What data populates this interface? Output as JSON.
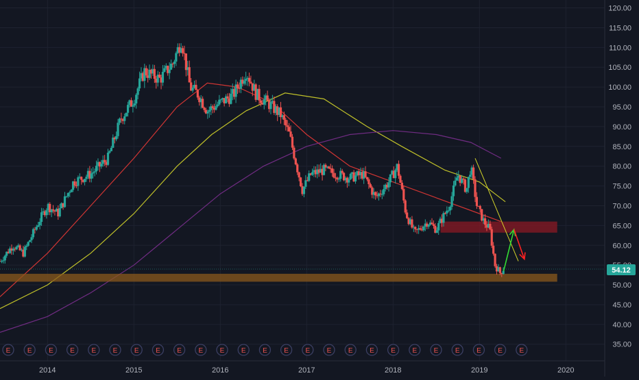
{
  "colors": {
    "background": "#131722",
    "grid": "#1e2230",
    "axis_text": "#b2b5be",
    "up": "#26a69a",
    "down": "#ef5350",
    "ma_fast": "#e53935",
    "ma_mid": "#d4d42a",
    "ma_slow": "#7b2f8e",
    "support_zone": "#8b5a1c",
    "resistance_zone": "#8b1a24",
    "price_tag": "#26a69a",
    "bull_arrow": "#33dd33",
    "bear_arrow": "#ff2222",
    "trendline": "#d4d42a"
  },
  "chart_data": {
    "type": "candlestick",
    "ylim": [
      30.8,
      122.0
    ],
    "y_ticks": [
      "120.00",
      "115.00",
      "110.00",
      "105.00",
      "100.00",
      "95.00",
      "90.00",
      "85.00",
      "80.00",
      "75.00",
      "70.00",
      "65.00",
      "60.00",
      "55.00",
      "50.00",
      "45.00",
      "40.00",
      "35.00"
    ],
    "x_ticks": [
      "2014",
      "2015",
      "2016",
      "2017",
      "2018",
      "2019",
      "2020"
    ],
    "current_price": "54.12",
    "earnings_marker_label": "E",
    "earnings_marker_count": 25,
    "price_path": [
      [
        "2013.45",
        56
      ],
      [
        "2013.6",
        60
      ],
      [
        "2013.72",
        58
      ],
      [
        "2013.9",
        66
      ],
      [
        "2014.0",
        70
      ],
      [
        "2014.12",
        68
      ],
      [
        "2014.3",
        76
      ],
      [
        "2014.5",
        78
      ],
      [
        "2014.7",
        82
      ],
      [
        "2014.85",
        92
      ],
      [
        "2015.0",
        97
      ],
      [
        "2015.12",
        104
      ],
      [
        "2015.3",
        102
      ],
      [
        "2015.45",
        106
      ],
      [
        "2015.55",
        112
      ],
      [
        "2015.65",
        100
      ],
      [
        "2015.75",
        98
      ],
      [
        "2015.85",
        94
      ],
      [
        "2016.0",
        96
      ],
      [
        "2016.15",
        98
      ],
      [
        "2016.3",
        104
      ],
      [
        "2016.42",
        98
      ],
      [
        "2016.55",
        96
      ],
      [
        "2016.7",
        93
      ],
      [
        "2016.8",
        88
      ],
      [
        "2016.95",
        74
      ],
      [
        "2017.05",
        78
      ],
      [
        "2017.2",
        79
      ],
      [
        "2017.35",
        78
      ],
      [
        "2017.5",
        77
      ],
      [
        "2017.65",
        78
      ],
      [
        "2017.8",
        72
      ],
      [
        "2017.95",
        76
      ],
      [
        "2018.05",
        80
      ],
      [
        "2018.15",
        68
      ],
      [
        "2018.25",
        63
      ],
      [
        "2018.4",
        66
      ],
      [
        "2018.5",
        64
      ],
      [
        "2018.65",
        70
      ],
      [
        "2018.75",
        78
      ],
      [
        "2018.85",
        74
      ],
      [
        "2018.9",
        80
      ],
      [
        "2018.97",
        70
      ],
      [
        "2019.05",
        66
      ],
      [
        "2019.12",
        64
      ],
      [
        "2019.18",
        55
      ],
      [
        "2019.24",
        53
      ],
      [
        "2019.28",
        54.12
      ]
    ],
    "moving_averages": [
      {
        "key": "ma_fast",
        "points": [
          [
            "2013.45",
            47
          ],
          [
            "2014.0",
            58
          ],
          [
            "2014.5",
            70
          ],
          [
            "2015.0",
            82
          ],
          [
            "2015.5",
            95
          ],
          [
            "2015.85",
            101
          ],
          [
            "2016.2",
            100
          ],
          [
            "2016.6",
            96
          ],
          [
            "2017.0",
            88
          ],
          [
            "2017.5",
            80
          ],
          [
            "2018.0",
            76
          ],
          [
            "2018.5",
            72
          ],
          [
            "2019.0",
            68
          ],
          [
            "2019.25",
            66
          ]
        ]
      },
      {
        "key": "ma_mid",
        "points": [
          [
            "2013.45",
            44
          ],
          [
            "2014.0",
            50
          ],
          [
            "2014.5",
            58
          ],
          [
            "2015.0",
            68
          ],
          [
            "2015.5",
            80
          ],
          [
            "2015.9",
            88
          ],
          [
            "2016.3",
            94
          ],
          [
            "2016.75",
            98.5
          ],
          [
            "2017.2",
            97
          ],
          [
            "2017.7",
            90
          ],
          [
            "2018.1",
            85
          ],
          [
            "2018.6",
            79
          ],
          [
            "2019.0",
            76
          ],
          [
            "2019.3",
            71
          ]
        ]
      },
      {
        "key": "ma_slow",
        "points": [
          [
            "2013.45",
            38
          ],
          [
            "2014.0",
            42
          ],
          [
            "2014.5",
            48
          ],
          [
            "2015.0",
            55
          ],
          [
            "2015.5",
            64
          ],
          [
            "2016.0",
            73
          ],
          [
            "2016.5",
            80
          ],
          [
            "2017.0",
            85
          ],
          [
            "2017.5",
            88
          ],
          [
            "2018.0",
            89
          ],
          [
            "2018.5",
            88
          ],
          [
            "2018.9",
            86
          ],
          [
            "2019.25",
            82
          ]
        ]
      }
    ],
    "zones": [
      {
        "key": "support_zone",
        "x": [
          "2013.45",
          "2019.9"
        ],
        "y": [
          50.8,
          52.8
        ]
      },
      {
        "key": "resistance_zone",
        "x": [
          "2018.55",
          "2019.9"
        ],
        "y": [
          63.2,
          66.0
        ]
      }
    ],
    "trendline": {
      "x": [
        "2018.95",
        "2019.45"
      ],
      "y": [
        82,
        56
      ]
    },
    "arrows": [
      {
        "key": "bull_arrow",
        "from": [
          "2019.28",
          53.5
        ],
        "to": [
          "2019.4",
          64
        ]
      },
      {
        "key": "bear_arrow",
        "from": [
          "2019.4",
          64
        ],
        "to": [
          "2019.52",
          56.5
        ]
      }
    ]
  }
}
